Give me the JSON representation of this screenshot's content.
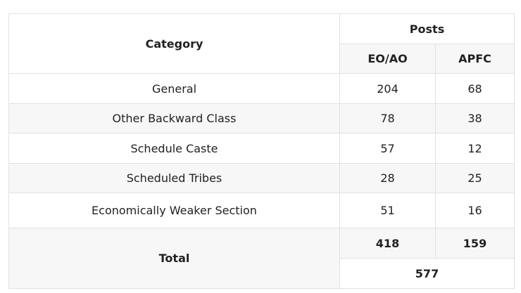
{
  "table": {
    "header": {
      "category": "Category",
      "posts": "Posts",
      "col_eo_ao": "EO/AO",
      "col_apfc": "APFC"
    },
    "rows": [
      {
        "category": "General",
        "eo_ao": "204",
        "apfc": "68"
      },
      {
        "category": "Other Backward Class",
        "eo_ao": "78",
        "apfc": "38"
      },
      {
        "category": "Schedule Caste",
        "eo_ao": "57",
        "apfc": "12"
      },
      {
        "category": "Scheduled Tribes",
        "eo_ao": "28",
        "apfc": "25"
      },
      {
        "category": "Economically Weaker Section",
        "eo_ao": "51",
        "apfc": "16"
      }
    ],
    "total": {
      "label": "Total",
      "eo_ao": "418",
      "apfc": "159",
      "grand_total": "577"
    }
  }
}
